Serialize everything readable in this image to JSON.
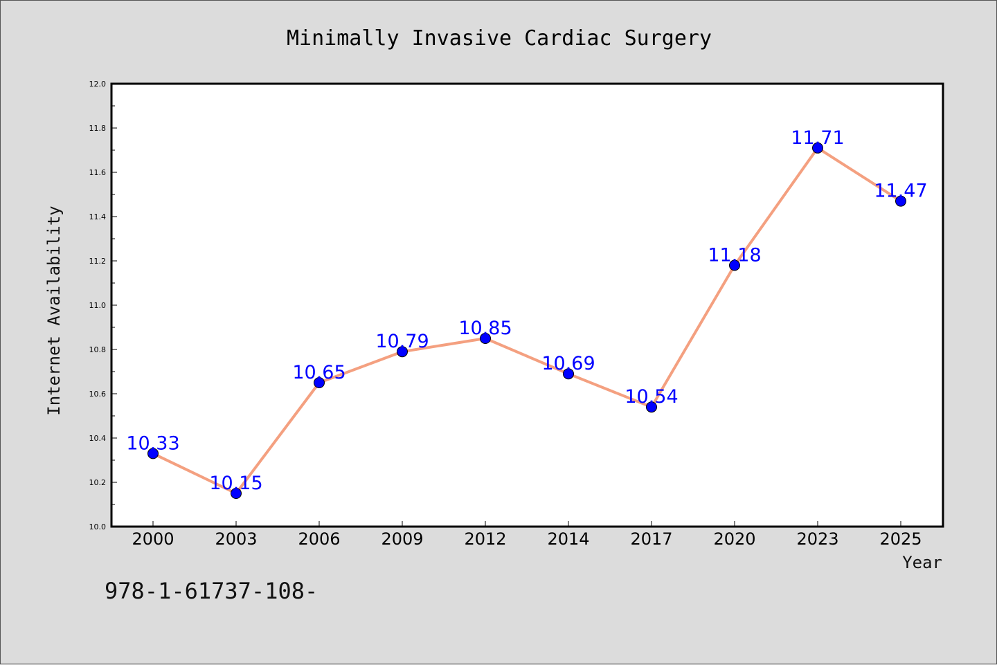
{
  "chart_data": {
    "type": "line",
    "title": "Minimally Invasive Cardiac Surgery",
    "xlabel": "Year",
    "ylabel": "Internet Availability",
    "categories": [
      "2000",
      "2003",
      "2006",
      "2009",
      "2012",
      "2014",
      "2017",
      "2020",
      "2023",
      "2025"
    ],
    "series": [
      {
        "values": [
          10.33,
          10.15,
          10.65,
          10.79,
          10.85,
          10.69,
          10.54,
          11.18,
          11.71,
          11.47
        ],
        "labels": [
          "10.33",
          "10.15",
          "10.65",
          "10.79",
          "10.85",
          "10.69",
          "10.54",
          "11.18",
          "11.71",
          "11.47"
        ],
        "line_color": "#f4a080",
        "marker_color": "#0000ff",
        "label_color": "#0000ff"
      }
    ],
    "ylim": [
      10.0,
      12.0
    ],
    "yticks": [
      "10.0",
      "10.2",
      "10.4",
      "10.6",
      "10.8",
      "11.0",
      "11.2",
      "11.4",
      "11.6",
      "11.8",
      "12.0"
    ],
    "grid": false,
    "background": "#dcdcdc",
    "plot_background": "#ffffff"
  },
  "footer": {
    "text": "978-1-61737-108-"
  }
}
